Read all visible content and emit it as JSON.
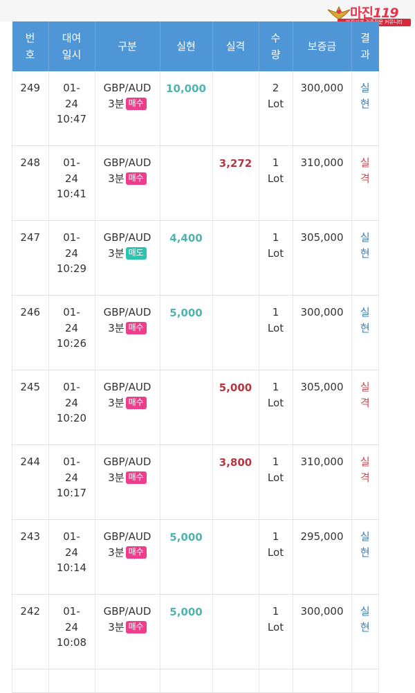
{
  "logo": {
    "brand": "마진",
    "brand_suffix": "119",
    "tagline": "마진거래 검증전문 커뮤니티"
  },
  "colors": {
    "header": "#4f96d6",
    "gain": "#4fb3b0",
    "loss": "#b2373f",
    "buy_badge": "#ec3e8a",
    "sell_badge": "#2cc3b0"
  },
  "table": {
    "headers": {
      "no": [
        "번",
        "호"
      ],
      "date": [
        "대여",
        "일시"
      ],
      "type": "구분",
      "gain": "실현",
      "loss": "실격",
      "qty": [
        "수",
        "량"
      ],
      "deposit": "보증금",
      "result": [
        "결",
        "과"
      ]
    },
    "rows": [
      {
        "no": "249",
        "date": [
          "01-",
          "24",
          "10:47"
        ],
        "pair": "GBP/AUD",
        "term": "3분",
        "side": "매수",
        "gain": "10,000",
        "loss": "",
        "qty": [
          "2",
          "Lot"
        ],
        "deposit": "300,000",
        "result": [
          "실",
          "현"
        ]
      },
      {
        "no": "248",
        "date": [
          "01-",
          "24",
          "10:41"
        ],
        "pair": "GBP/AUD",
        "term": "3분",
        "side": "매수",
        "gain": "",
        "loss": "3,272",
        "qty": [
          "1",
          "Lot"
        ],
        "deposit": "310,000",
        "result": [
          "실",
          "격"
        ]
      },
      {
        "no": "247",
        "date": [
          "01-",
          "24",
          "10:29"
        ],
        "pair": "GBP/AUD",
        "term": "3분",
        "side": "매도",
        "gain": "4,400",
        "loss": "",
        "qty": [
          "1",
          "Lot"
        ],
        "deposit": "305,000",
        "result": [
          "실",
          "현"
        ]
      },
      {
        "no": "246",
        "date": [
          "01-",
          "24",
          "10:26"
        ],
        "pair": "GBP/AUD",
        "term": "3분",
        "side": "매수",
        "gain": "5,000",
        "loss": "",
        "qty": [
          "1",
          "Lot"
        ],
        "deposit": "300,000",
        "result": [
          "실",
          "현"
        ]
      },
      {
        "no": "245",
        "date": [
          "01-",
          "24",
          "10:20"
        ],
        "pair": "GBP/AUD",
        "term": "3분",
        "side": "매수",
        "gain": "",
        "loss": "5,000",
        "qty": [
          "1",
          "Lot"
        ],
        "deposit": "305,000",
        "result": [
          "실",
          "격"
        ]
      },
      {
        "no": "244",
        "date": [
          "01-",
          "24",
          "10:17"
        ],
        "pair": "GBP/AUD",
        "term": "3분",
        "side": "매수",
        "gain": "",
        "loss": "3,800",
        "qty": [
          "1",
          "Lot"
        ],
        "deposit": "310,000",
        "result": [
          "실",
          "격"
        ]
      },
      {
        "no": "243",
        "date": [
          "01-",
          "24",
          "10:14"
        ],
        "pair": "GBP/AUD",
        "term": "3분",
        "side": "매수",
        "gain": "5,000",
        "loss": "",
        "qty": [
          "1",
          "Lot"
        ],
        "deposit": "295,000",
        "result": [
          "실",
          "현"
        ]
      },
      {
        "no": "242",
        "date": [
          "01-",
          "24",
          "10:08"
        ],
        "pair": "GBP/AUD",
        "term": "3분",
        "side": "매수",
        "gain": "5,000",
        "loss": "",
        "qty": [
          "1",
          "Lot"
        ],
        "deposit": "300,000",
        "result": [
          "실",
          "현"
        ]
      }
    ]
  }
}
